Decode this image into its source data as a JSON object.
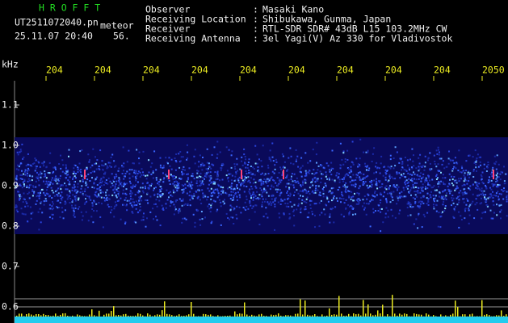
{
  "header": {
    "app": "H R O F F T",
    "file": "UT2511072040.pn",
    "mode": "meteor",
    "datetime": "25.11.07 20:40",
    "counter": "56."
  },
  "info_separator": ":",
  "info": [
    {
      "label": "Observer",
      "value": "Masaki Kano"
    },
    {
      "label": "Receiving Location",
      "value": "Shibukawa, Gunma, Japan"
    },
    {
      "label": "Receiver",
      "value": "RTL-SDR SDR# 43dB L15 103.2MHz CW"
    },
    {
      "label": "Receiving Antenna",
      "value": "3el Yagi(V) Az 330 for Vladivostok"
    }
  ],
  "axis": {
    "y_unit": "kHz",
    "y_ticks": [
      "1.1",
      "1.0",
      "0.9",
      "0.8",
      "0.7",
      "0.6"
    ],
    "x_ticks": [
      "204",
      "204",
      "204",
      "204",
      "204",
      "204",
      "204",
      "204",
      "204",
      "2050"
    ]
  }
}
